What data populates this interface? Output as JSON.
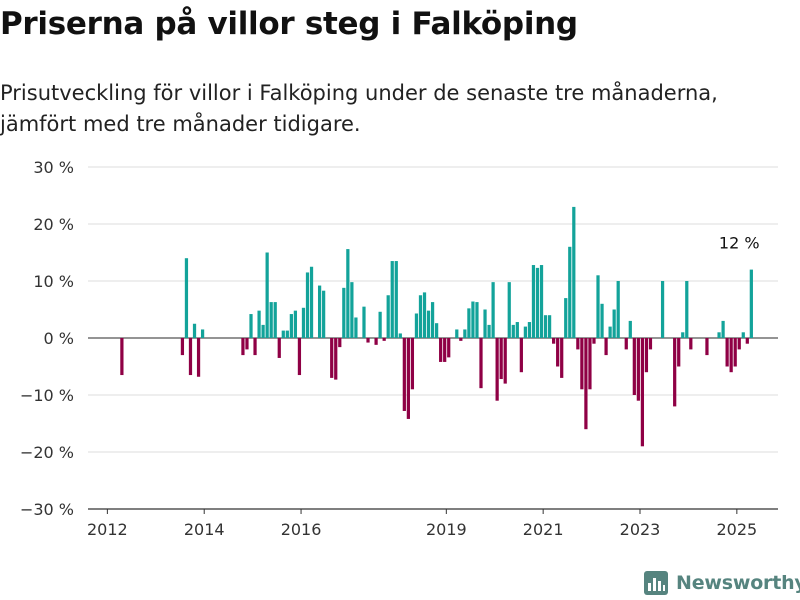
{
  "title": "Priserna på villor steg i Falköping",
  "subtitle": "Prisutveckling för villor i Falköping under de senaste tre månaderna, jämfört med tre månader tidigare.",
  "brand": {
    "name": "Newsworthy",
    "icon": "bar-chart-logo-icon"
  },
  "colors": {
    "positive": "#13a39a",
    "negative": "#8f0045",
    "grid": "#dddddd",
    "axis": "#333333"
  },
  "chart_data": {
    "type": "bar",
    "unit": "%",
    "x_start": 2011.8,
    "x_step": 0.08333,
    "xlim": [
      2011.6,
      2025.85
    ],
    "ylim": [
      -30,
      30
    ],
    "grid": true,
    "yticks": [
      30,
      20,
      10,
      0,
      -10,
      -20,
      -30
    ],
    "ytick_labels": [
      "30 %",
      "20 %",
      "10 %",
      "0 %",
      "−10 %",
      "−20 %",
      "−30 %"
    ],
    "xticks": [
      2012,
      2014,
      2016,
      2019,
      2021,
      2023,
      2025
    ],
    "xtick_labels": [
      "2012",
      "2014",
      "2016",
      "2019",
      "2021",
      "2023",
      "2025"
    ],
    "annotation": {
      "label": "12 %",
      "x": 2025.05,
      "y": 12
    },
    "values": [
      0,
      0,
      0,
      0,
      0,
      0,
      -6.5,
      0,
      0,
      0,
      0,
      0,
      0,
      0,
      0,
      0,
      0,
      0,
      0,
      0,
      0,
      -3,
      14,
      -6.5,
      2.5,
      -6.8,
      1.5,
      0,
      0,
      0,
      0,
      0,
      0,
      0,
      0,
      0,
      -3,
      -2,
      4.2,
      -3,
      4.8,
      2.3,
      15,
      6.3,
      6.3,
      -3.5,
      1.3,
      1.3,
      4.2,
      4.8,
      -6.5,
      5.3,
      11.5,
      12.5,
      0,
      9.2,
      8.3,
      0,
      -7,
      -7.3,
      -1.6,
      8.8,
      15.6,
      9.8,
      3.6,
      0,
      5.5,
      -0.8,
      0,
      -1.2,
      4.6,
      -0.5,
      7.5,
      13.5,
      13.5,
      0.8,
      -12.8,
      -14.2,
      -9,
      4.3,
      7.5,
      8,
      4.8,
      6.3,
      2.6,
      -4.2,
      -4.2,
      -3.4,
      0,
      1.5,
      -0.5,
      1.5,
      5.2,
      6.4,
      6.3,
      -8.8,
      5,
      2.3,
      9.8,
      -11,
      -7.2,
      -8,
      9.8,
      2.3,
      2.8,
      -6,
      2,
      2.8,
      12.8,
      12.3,
      12.8,
      4,
      4,
      -1,
      -5,
      -7,
      7,
      16,
      23,
      -2,
      -9,
      -16,
      -9,
      -1,
      11,
      6,
      -3,
      2,
      5,
      10,
      0,
      -2,
      3,
      -10,
      -11,
      -19,
      -6,
      -2,
      0,
      0,
      10,
      0,
      0,
      -12,
      -5,
      1,
      10,
      -2,
      0,
      0,
      0,
      -3,
      0,
      0,
      1,
      3,
      -5,
      -6,
      -5,
      -2,
      1,
      -1,
      12
    ]
  }
}
